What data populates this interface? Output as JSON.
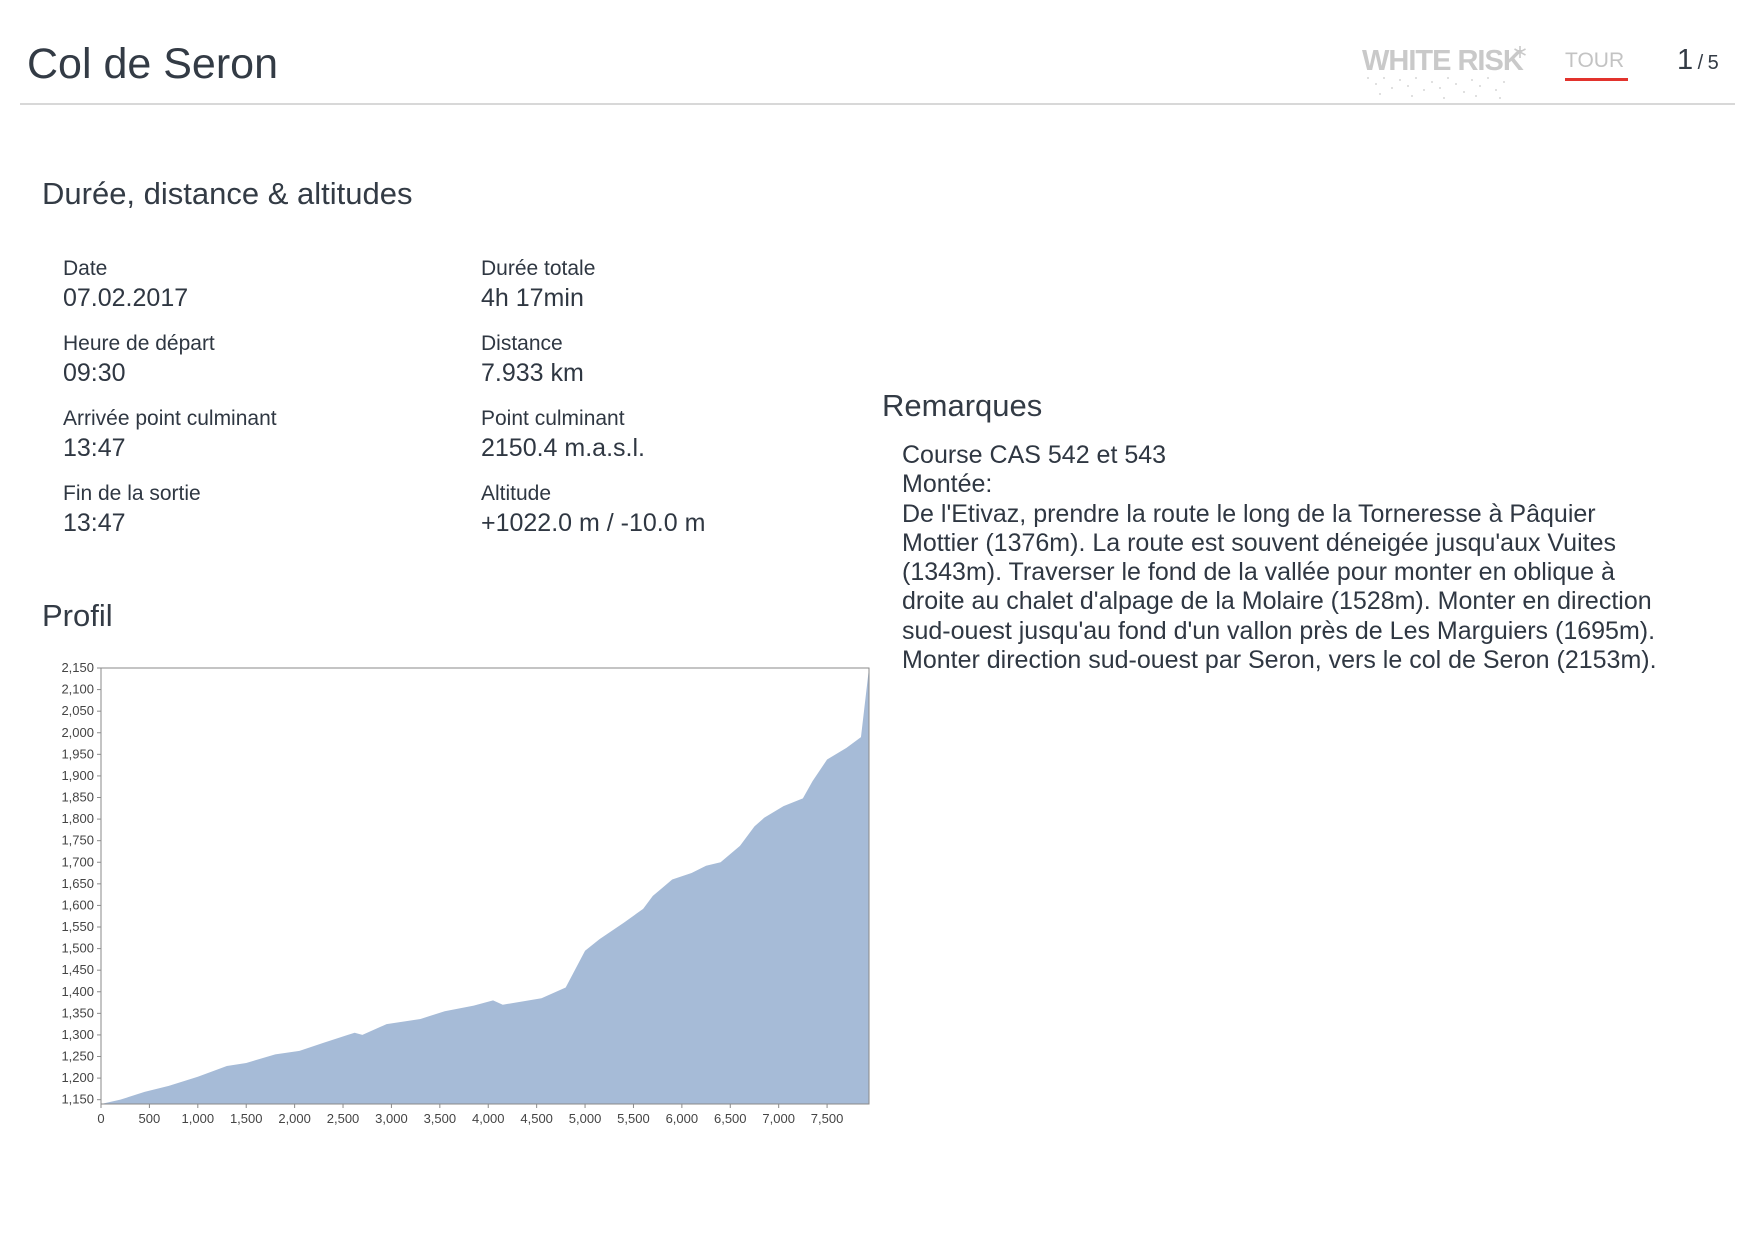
{
  "header": {
    "title": "Col de Seron",
    "logo_text": "WHITE RISK",
    "tour_label": "TOUR",
    "page_current": "1",
    "page_separator": "/",
    "page_total": "5"
  },
  "sections": {
    "stats_title": "Durée, distance & altitudes",
    "profile_title": "Profil",
    "remarks_title": "Remarques"
  },
  "stats": {
    "date_label": "Date",
    "date_value": "07.02.2017",
    "start_label": "Heure de départ",
    "start_value": "09:30",
    "summit_arrival_label": "Arrivée point culminant",
    "summit_arrival_value": "13:47",
    "end_label": "Fin de la sortie",
    "end_value": "13:47",
    "duration_label": "Durée totale",
    "duration_value": "4h 17min",
    "distance_label": "Distance",
    "distance_value": "7.933 km",
    "summit_label": "Point culminant",
    "summit_value": "2150.4 m.a.s.l.",
    "altitude_label": "Altitude",
    "altitude_value": "+1022.0 m / -10.0 m"
  },
  "remarks": {
    "lines": [
      "Course CAS 542 et 543",
      "Montée:",
      "De l'Etivaz, prendre la route le long de la Torneresse à Pâquier Mottier (1376m). La route est souvent déneigée jusqu'aux Vuites (1343m). Traverser le fond de la vallée pour monter en oblique à droite au chalet d'alpage de la Molaire (1528m). Monter en direction sud-ouest jusqu'au fond d'un vallon près de Les Marguiers (1695m). Monter direction sud-ouest par Seron, vers le col de Seron (2153m)."
    ]
  },
  "chart_data": {
    "type": "area",
    "title": "",
    "xlabel": "",
    "ylabel": "",
    "xlim": [
      0,
      7933
    ],
    "ylim": [
      1140,
      2150
    ],
    "x_ticks": [
      0,
      500,
      1000,
      1500,
      2000,
      2500,
      3000,
      3500,
      4000,
      4500,
      5000,
      5500,
      6000,
      6500,
      7000,
      7500
    ],
    "x_tick_labels": [
      "0",
      "500",
      "1,000",
      "1,500",
      "2,000",
      "2,500",
      "3,000",
      "3,500",
      "4,000",
      "4,500",
      "5,000",
      "5,500",
      "6,000",
      "6,500",
      "7,000",
      "7,500"
    ],
    "y_ticks": [
      1150,
      1200,
      1250,
      1300,
      1350,
      1400,
      1450,
      1500,
      1550,
      1600,
      1650,
      1700,
      1750,
      1800,
      1850,
      1900,
      1950,
      2000,
      2050,
      2100,
      2150
    ],
    "y_tick_labels": [
      "1,150",
      "1,200",
      "1,250",
      "1,300",
      "1,350",
      "1,400",
      "1,450",
      "1,500",
      "1,550",
      "1,600",
      "1,650",
      "1,700",
      "1,750",
      "1,800",
      "1,850",
      "1,900",
      "1,950",
      "2,000",
      "2,050",
      "2,100",
      "2,150"
    ],
    "grid": false,
    "fill_color": "#a6bbd7",
    "series": [
      {
        "x": [
          0,
          200,
          450,
          700,
          1000,
          1300,
          1500,
          1800,
          2050,
          2300,
          2550,
          2620,
          2700,
          2950,
          3300,
          3550,
          3850,
          4050,
          4150,
          4550,
          4800,
          5000,
          5150,
          5400,
          5600,
          5700,
          5900,
          6100,
          6250,
          6400,
          6600,
          6750,
          6850,
          7050,
          7250,
          7350,
          7500,
          7700,
          7850,
          7933
        ],
        "y": [
          1140,
          1150,
          1168,
          1182,
          1203,
          1228,
          1235,
          1255,
          1263,
          1282,
          1300,
          1305,
          1300,
          1325,
          1337,
          1355,
          1368,
          1380,
          1370,
          1385,
          1410,
          1495,
          1522,
          1560,
          1592,
          1622,
          1660,
          1675,
          1692,
          1700,
          1738,
          1783,
          1803,
          1830,
          1848,
          1888,
          1938,
          1965,
          1990,
          2150
        ]
      }
    ]
  }
}
